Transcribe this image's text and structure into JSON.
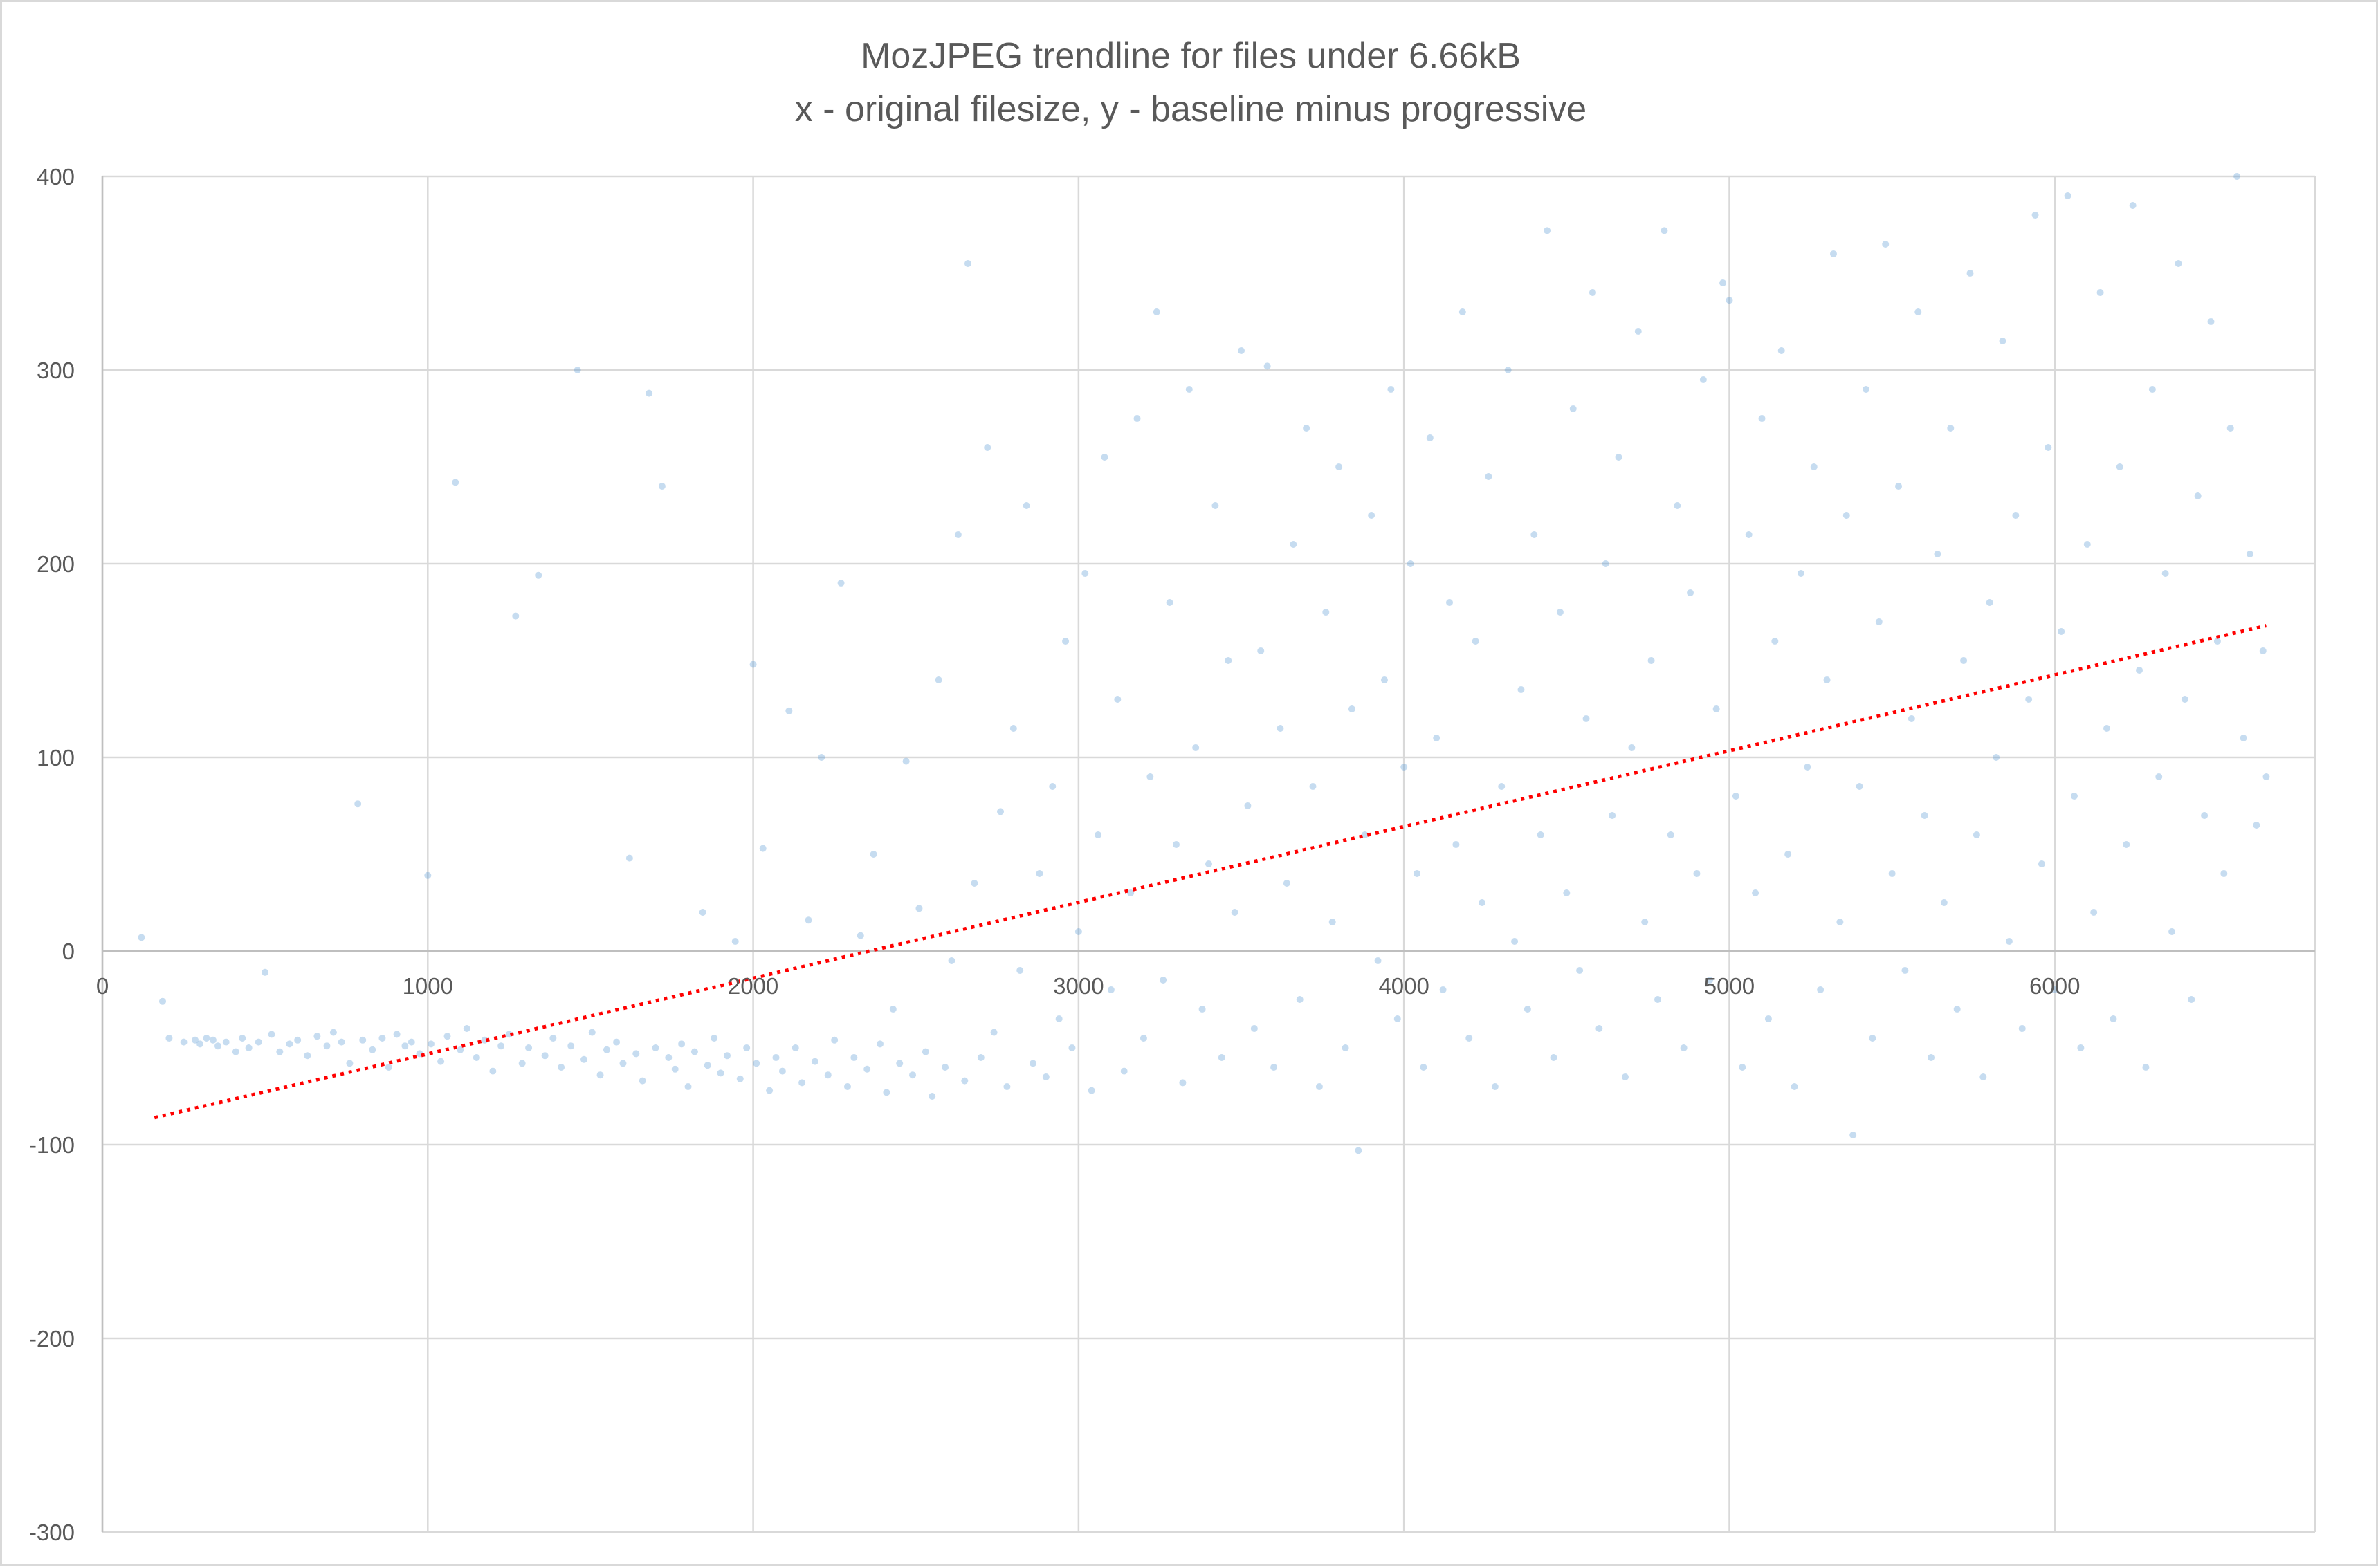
{
  "chart_data": {
    "type": "scatter",
    "title": "MozJPEG trendline for files under 6.66kB",
    "subtitle": "x - original filesize, y - baseline minus progressive",
    "xlim": [
      0,
      6800
    ],
    "ylim": [
      -300,
      400
    ],
    "x_ticks": [
      0,
      1000,
      2000,
      3000,
      4000,
      5000,
      6000
    ],
    "x_tick_labels": [
      "0",
      "1000",
      "2000",
      "3000",
      "4000",
      "5000",
      "6000"
    ],
    "y_ticks": [
      400,
      300,
      200,
      100,
      0,
      -100,
      -200,
      -300
    ],
    "y_tick_labels": [
      "400",
      "300",
      "200",
      "100",
      "0",
      "-100",
      "-200",
      "-300"
    ],
    "grid": true,
    "marker_color": "#5b9bd5",
    "trendline_color": "#ff0000",
    "trendline": {
      "type": "linear",
      "style": "dotted",
      "points": [
        [
          160,
          -86
        ],
        [
          6650,
          168
        ]
      ]
    },
    "series": [
      {
        "points": [
          [
            120,
            7
          ],
          [
            185,
            -26
          ],
          [
            205,
            -45
          ],
          [
            250,
            -47
          ],
          [
            285,
            -46
          ],
          [
            300,
            -48
          ],
          [
            320,
            -45
          ],
          [
            340,
            -46
          ],
          [
            355,
            -49
          ],
          [
            380,
            -47
          ],
          [
            410,
            -52
          ],
          [
            430,
            -45
          ],
          [
            450,
            -50
          ],
          [
            480,
            -47
          ],
          [
            500,
            -11
          ],
          [
            520,
            -43
          ],
          [
            545,
            -52
          ],
          [
            575,
            -48
          ],
          [
            600,
            -46
          ],
          [
            630,
            -54
          ],
          [
            660,
            -44
          ],
          [
            690,
            -49
          ],
          [
            710,
            -42
          ],
          [
            735,
            -47
          ],
          [
            760,
            -58
          ],
          [
            785,
            76
          ],
          [
            800,
            -46
          ],
          [
            830,
            -51
          ],
          [
            860,
            -45
          ],
          [
            880,
            -60
          ],
          [
            905,
            -43
          ],
          [
            930,
            -49
          ],
          [
            950,
            -47
          ],
          [
            975,
            -53
          ],
          [
            1000,
            39
          ],
          [
            1010,
            -48
          ],
          [
            1040,
            -57
          ],
          [
            1060,
            -44
          ],
          [
            1085,
            242
          ],
          [
            1100,
            -51
          ],
          [
            1120,
            -40
          ],
          [
            1150,
            -55
          ],
          [
            1175,
            -46
          ],
          [
            1200,
            -62
          ],
          [
            1225,
            -49
          ],
          [
            1250,
            -43
          ],
          [
            1270,
            173
          ],
          [
            1290,
            -58
          ],
          [
            1310,
            -50
          ],
          [
            1340,
            194
          ],
          [
            1360,
            -54
          ],
          [
            1385,
            -45
          ],
          [
            1410,
            -60
          ],
          [
            1440,
            -49
          ],
          [
            1460,
            300
          ],
          [
            1480,
            -56
          ],
          [
            1505,
            -42
          ],
          [
            1530,
            -64
          ],
          [
            1550,
            -51
          ],
          [
            1580,
            -47
          ],
          [
            1600,
            -58
          ],
          [
            1620,
            48
          ],
          [
            1640,
            -53
          ],
          [
            1660,
            -67
          ],
          [
            1680,
            288
          ],
          [
            1700,
            -50
          ],
          [
            1720,
            240
          ],
          [
            1740,
            -55
          ],
          [
            1760,
            -61
          ],
          [
            1780,
            -48
          ],
          [
            1800,
            -70
          ],
          [
            1820,
            -52
          ],
          [
            1845,
            20
          ],
          [
            1860,
            -59
          ],
          [
            1880,
            -45
          ],
          [
            1900,
            -63
          ],
          [
            1920,
            -54
          ],
          [
            1945,
            5
          ],
          [
            1960,
            -66
          ],
          [
            1980,
            -50
          ],
          [
            2000,
            148
          ],
          [
            2010,
            -58
          ],
          [
            2030,
            53
          ],
          [
            2050,
            -72
          ],
          [
            2070,
            -55
          ],
          [
            2090,
            -62
          ],
          [
            2110,
            124
          ],
          [
            2130,
            -50
          ],
          [
            2150,
            -68
          ],
          [
            2170,
            16
          ],
          [
            2190,
            -57
          ],
          [
            2210,
            100
          ],
          [
            2230,
            -64
          ],
          [
            2250,
            -46
          ],
          [
            2270,
            190
          ],
          [
            2290,
            -70
          ],
          [
            2310,
            -55
          ],
          [
            2330,
            8
          ],
          [
            2350,
            -61
          ],
          [
            2370,
            50
          ],
          [
            2390,
            -48
          ],
          [
            2410,
            -73
          ],
          [
            2430,
            -30
          ],
          [
            2450,
            -58
          ],
          [
            2470,
            98
          ],
          [
            2490,
            -64
          ],
          [
            2510,
            22
          ],
          [
            2530,
            -52
          ],
          [
            2550,
            -75
          ],
          [
            2570,
            140
          ],
          [
            2590,
            -60
          ],
          [
            2610,
            -5
          ],
          [
            2630,
            215
          ],
          [
            2650,
            -67
          ],
          [
            2660,
            355
          ],
          [
            2680,
            35
          ],
          [
            2700,
            -55
          ],
          [
            2720,
            260
          ],
          [
            2740,
            -42
          ],
          [
            2760,
            72
          ],
          [
            2780,
            -70
          ],
          [
            2800,
            115
          ],
          [
            2820,
            -10
          ],
          [
            2840,
            230
          ],
          [
            2860,
            -58
          ],
          [
            2880,
            40
          ],
          [
            2900,
            -65
          ],
          [
            2920,
            85
          ],
          [
            2940,
            -35
          ],
          [
            2960,
            160
          ],
          [
            2980,
            -50
          ],
          [
            3000,
            10
          ],
          [
            3020,
            195
          ],
          [
            3040,
            -72
          ],
          [
            3060,
            60
          ],
          [
            3080,
            255
          ],
          [
            3100,
            -20
          ],
          [
            3120,
            130
          ],
          [
            3140,
            -62
          ],
          [
            3160,
            30
          ],
          [
            3180,
            275
          ],
          [
            3200,
            -45
          ],
          [
            3220,
            90
          ],
          [
            3240,
            330
          ],
          [
            3260,
            -15
          ],
          [
            3280,
            180
          ],
          [
            3300,
            55
          ],
          [
            3320,
            -68
          ],
          [
            3340,
            290
          ],
          [
            3360,
            105
          ],
          [
            3380,
            -30
          ],
          [
            3400,
            45
          ],
          [
            3420,
            230
          ],
          [
            3440,
            -55
          ],
          [
            3460,
            150
          ],
          [
            3480,
            20
          ],
          [
            3500,
            310
          ],
          [
            3520,
            75
          ],
          [
            3540,
            -40
          ],
          [
            3560,
            155
          ],
          [
            3580,
            302
          ],
          [
            3600,
            -60
          ],
          [
            3620,
            115
          ],
          [
            3640,
            35
          ],
          [
            3660,
            210
          ],
          [
            3680,
            -25
          ],
          [
            3700,
            270
          ],
          [
            3720,
            85
          ],
          [
            3740,
            -70
          ],
          [
            3760,
            175
          ],
          [
            3780,
            15
          ],
          [
            3800,
            250
          ],
          [
            3820,
            -50
          ],
          [
            3840,
            125
          ],
          [
            3860,
            -103
          ],
          [
            3880,
            60
          ],
          [
            3900,
            225
          ],
          [
            3920,
            -5
          ],
          [
            3940,
            140
          ],
          [
            3960,
            290
          ],
          [
            3980,
            -35
          ],
          [
            4000,
            95
          ],
          [
            4020,
            200
          ],
          [
            4040,
            40
          ],
          [
            4060,
            -60
          ],
          [
            4080,
            265
          ],
          [
            4100,
            110
          ],
          [
            4120,
            -20
          ],
          [
            4140,
            180
          ],
          [
            4160,
            55
          ],
          [
            4180,
            330
          ],
          [
            4200,
            -45
          ],
          [
            4220,
            160
          ],
          [
            4240,
            25
          ],
          [
            4260,
            245
          ],
          [
            4280,
            -70
          ],
          [
            4300,
            85
          ],
          [
            4320,
            300
          ],
          [
            4340,
            5
          ],
          [
            4360,
            135
          ],
          [
            4380,
            -30
          ],
          [
            4400,
            215
          ],
          [
            4420,
            60
          ],
          [
            4440,
            372
          ],
          [
            4460,
            -55
          ],
          [
            4480,
            175
          ],
          [
            4500,
            30
          ],
          [
            4520,
            280
          ],
          [
            4540,
            -10
          ],
          [
            4560,
            120
          ],
          [
            4580,
            340
          ],
          [
            4600,
            -40
          ],
          [
            4620,
            200
          ],
          [
            4640,
            70
          ],
          [
            4660,
            255
          ],
          [
            4680,
            -65
          ],
          [
            4700,
            105
          ],
          [
            4720,
            320
          ],
          [
            4740,
            15
          ],
          [
            4760,
            150
          ],
          [
            4780,
            -25
          ],
          [
            4800,
            372
          ],
          [
            4820,
            60
          ],
          [
            4840,
            230
          ],
          [
            4860,
            -50
          ],
          [
            4880,
            185
          ],
          [
            4900,
            40
          ],
          [
            4920,
            295
          ],
          [
            4940,
            -15
          ],
          [
            4960,
            125
          ],
          [
            4980,
            345
          ],
          [
            5000,
            336
          ],
          [
            5020,
            80
          ],
          [
            5040,
            -60
          ],
          [
            5060,
            215
          ],
          [
            5080,
            30
          ],
          [
            5100,
            275
          ],
          [
            5120,
            -35
          ],
          [
            5140,
            160
          ],
          [
            5160,
            310
          ],
          [
            5180,
            50
          ],
          [
            5200,
            -70
          ],
          [
            5220,
            195
          ],
          [
            5240,
            95
          ],
          [
            5260,
            250
          ],
          [
            5280,
            -20
          ],
          [
            5300,
            140
          ],
          [
            5320,
            360
          ],
          [
            5340,
            15
          ],
          [
            5360,
            225
          ],
          [
            5380,
            -95
          ],
          [
            5400,
            85
          ],
          [
            5420,
            290
          ],
          [
            5440,
            -45
          ],
          [
            5460,
            170
          ],
          [
            5480,
            365
          ],
          [
            5500,
            40
          ],
          [
            5520,
            240
          ],
          [
            5540,
            -10
          ],
          [
            5560,
            120
          ],
          [
            5580,
            330
          ],
          [
            5600,
            70
          ],
          [
            5620,
            -55
          ],
          [
            5640,
            205
          ],
          [
            5660,
            25
          ],
          [
            5680,
            270
          ],
          [
            5700,
            -30
          ],
          [
            5720,
            150
          ],
          [
            5740,
            350
          ],
          [
            5760,
            60
          ],
          [
            5780,
            -65
          ],
          [
            5800,
            180
          ],
          [
            5820,
            100
          ],
          [
            5840,
            315
          ],
          [
            5860,
            5
          ],
          [
            5880,
            225
          ],
          [
            5900,
            -40
          ],
          [
            5920,
            130
          ],
          [
            5940,
            380
          ],
          [
            5960,
            45
          ],
          [
            5980,
            260
          ],
          [
            6000,
            -20
          ],
          [
            6020,
            165
          ],
          [
            6040,
            390
          ],
          [
            6060,
            80
          ],
          [
            6080,
            -50
          ],
          [
            6100,
            210
          ],
          [
            6120,
            20
          ],
          [
            6140,
            340
          ],
          [
            6160,
            115
          ],
          [
            6180,
            -35
          ],
          [
            6200,
            250
          ],
          [
            6220,
            55
          ],
          [
            6240,
            385
          ],
          [
            6260,
            145
          ],
          [
            6280,
            -60
          ],
          [
            6300,
            290
          ],
          [
            6320,
            90
          ],
          [
            6340,
            195
          ],
          [
            6360,
            10
          ],
          [
            6380,
            355
          ],
          [
            6400,
            130
          ],
          [
            6420,
            -25
          ],
          [
            6440,
            235
          ],
          [
            6460,
            70
          ],
          [
            6480,
            325
          ],
          [
            6500,
            160
          ],
          [
            6520,
            40
          ],
          [
            6540,
            270
          ],
          [
            6560,
            400
          ],
          [
            6580,
            110
          ],
          [
            6600,
            205
          ],
          [
            6620,
            65
          ],
          [
            6640,
            155
          ],
          [
            6650,
            90
          ]
        ]
      }
    ]
  }
}
